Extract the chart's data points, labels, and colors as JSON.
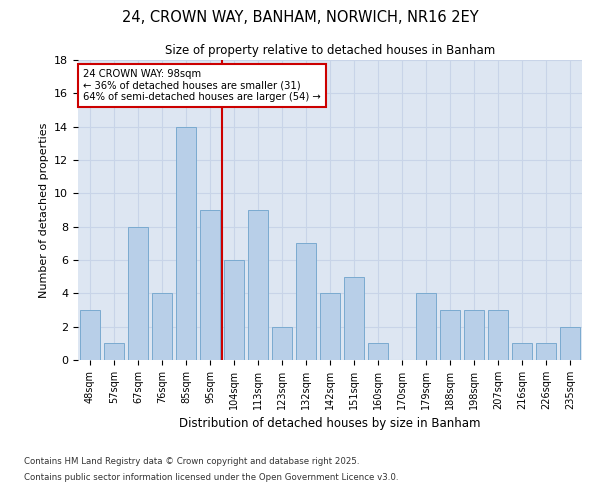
{
  "title1": "24, CROWN WAY, BANHAM, NORWICH, NR16 2EY",
  "title2": "Size of property relative to detached houses in Banham",
  "xlabel": "Distribution of detached houses by size in Banham",
  "ylabel": "Number of detached properties",
  "categories": [
    "48sqm",
    "57sqm",
    "67sqm",
    "76sqm",
    "85sqm",
    "95sqm",
    "104sqm",
    "113sqm",
    "123sqm",
    "132sqm",
    "142sqm",
    "151sqm",
    "160sqm",
    "170sqm",
    "179sqm",
    "188sqm",
    "198sqm",
    "207sqm",
    "216sqm",
    "226sqm",
    "235sqm"
  ],
  "values": [
    3,
    1,
    8,
    4,
    14,
    9,
    6,
    9,
    2,
    7,
    4,
    5,
    1,
    0,
    4,
    3,
    3,
    3,
    1,
    1,
    2
  ],
  "bar_color": "#b8cfe8",
  "bar_edge_color": "#7aaad0",
  "vline_color": "#cc0000",
  "annotation_text": "24 CROWN WAY: 98sqm\n← 36% of detached houses are smaller (31)\n64% of semi-detached houses are larger (54) →",
  "annotation_box_edge": "#cc0000",
  "ylim": [
    0,
    18
  ],
  "yticks": [
    0,
    2,
    4,
    6,
    8,
    10,
    12,
    14,
    16,
    18
  ],
  "grid_color": "#c8d4e8",
  "bg_color": "#dde6f2",
  "footer1": "Contains HM Land Registry data © Crown copyright and database right 2025.",
  "footer2": "Contains public sector information licensed under the Open Government Licence v3.0."
}
